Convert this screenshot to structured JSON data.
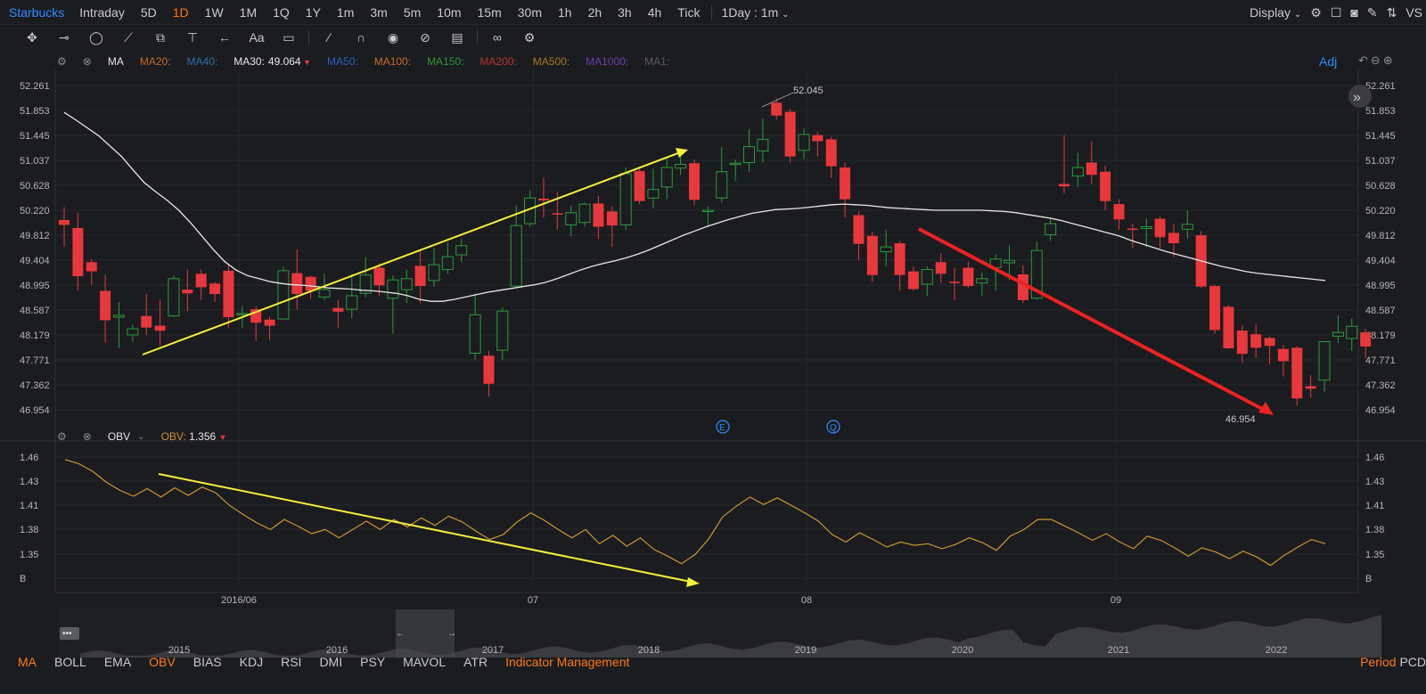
{
  "topbar": {
    "symbol": "Starbucks",
    "timeframes": [
      "Intraday",
      "5D",
      "1D",
      "1W",
      "1M",
      "1Q",
      "1Y",
      "1m",
      "3m",
      "5m",
      "10m",
      "15m",
      "30m",
      "1h",
      "2h",
      "3h",
      "4h",
      "Tick"
    ],
    "active_timeframe": "1D",
    "interval_label": "1Day : 1m",
    "display_label": "Display",
    "vs_label": "VS"
  },
  "toolbar": {
    "tools": [
      "move-icon",
      "line-tool-icon",
      "shape-tool-icon",
      "wave-tool-icon",
      "fib-tool-icon",
      "text-tool-icon",
      "arrow-tool-icon",
      "font-tool-icon",
      "note-tool-icon",
      "pencil-icon",
      "magnet-icon",
      "eye-icon",
      "hide-icon",
      "trash-icon",
      "link-icon",
      "settings-icon"
    ],
    "text_tool_label": "Aa"
  },
  "main_panel": {
    "indicator": "MA",
    "ma_items": [
      {
        "label": "MA20:",
        "color": "#c56a2a"
      },
      {
        "label": "MA40:",
        "color": "#2b6fae"
      },
      {
        "label": "MA30:",
        "value": "49.064",
        "color": "#e8e8e8"
      },
      {
        "label": "MA50:",
        "color": "#2b5fbe"
      },
      {
        "label": "MA100:",
        "color": "#c56a2a"
      },
      {
        "label": "MA150:",
        "color": "#2c9a3f"
      },
      {
        "label": "MA200:",
        "color": "#b8332e"
      },
      {
        "label": "MA500:",
        "color": "#a37a22"
      },
      {
        "label": "MA1000:",
        "color": "#6a3fb0"
      },
      {
        "label": "MA1:",
        "color": "#5a5c60"
      }
    ],
    "adj_label": "Adj",
    "high_label": "52.045",
    "low_label": "46.954",
    "event_markers": [
      "E",
      "Q"
    ]
  },
  "obv_panel": {
    "indicator": "OBV",
    "value_label": "OBV:",
    "value": "1.356",
    "line_color": "#c9972e"
  },
  "bottom_bar": {
    "indicators": [
      "MA",
      "BOLL",
      "EMA",
      "OBV",
      "BIAS",
      "KDJ",
      "RSI",
      "DMI",
      "PSY",
      "MAVOL",
      "ATR"
    ],
    "active": [
      "MA",
      "OBV"
    ],
    "management": "Indicator Management",
    "period": "Period",
    "pcd": "PCD"
  },
  "chart_data": [
    {
      "type": "candlestick",
      "y_ticks": [
        "52.261",
        "51.853",
        "51.445",
        "51.037",
        "50.628",
        "50.220",
        "49.812",
        "49.404",
        "48.995",
        "48.587",
        "48.179",
        "47.771",
        "47.362",
        "46.954"
      ],
      "ylim": [
        46.75,
        52.5
      ],
      "x_ticks": [
        "2016/06",
        "07",
        "08",
        "09"
      ],
      "up_color": "#2c9a3f",
      "down_color": "#e8383d",
      "candles": [
        [
          50.06,
          49.98,
          50.27,
          49.62
        ],
        [
          49.93,
          49.14,
          50.18,
          48.9
        ],
        [
          49.37,
          49.22,
          49.42,
          49.0
        ],
        [
          48.9,
          48.42,
          49.16,
          48.05
        ],
        [
          48.47,
          48.5,
          48.72,
          47.97
        ],
        [
          48.18,
          48.28,
          48.35,
          48.07
        ],
        [
          48.49,
          48.3,
          48.85,
          48.18
        ],
        [
          48.33,
          48.25,
          48.75,
          48.0
        ],
        [
          48.49,
          49.1,
          49.15,
          48.47
        ],
        [
          48.92,
          48.86,
          49.25,
          48.57
        ],
        [
          49.18,
          48.96,
          49.25,
          48.75
        ],
        [
          49.02,
          48.85,
          49.05,
          48.72
        ],
        [
          49.23,
          48.47,
          49.35,
          48.3
        ],
        [
          48.51,
          48.53,
          48.65,
          48.3
        ],
        [
          48.6,
          48.38,
          48.65,
          48.08
        ],
        [
          48.43,
          48.33,
          48.48,
          48.1
        ],
        [
          48.44,
          49.23,
          49.3,
          48.44
        ],
        [
          49.19,
          48.85,
          49.58,
          48.6
        ],
        [
          49.13,
          48.9,
          49.15,
          48.77
        ],
        [
          48.8,
          48.92,
          49.18,
          48.75
        ],
        [
          48.62,
          48.56,
          48.75,
          48.3
        ],
        [
          48.6,
          48.82,
          49.18,
          48.45
        ],
        [
          48.86,
          49.16,
          49.45,
          48.8
        ],
        [
          49.28,
          48.99,
          49.35,
          48.82
        ],
        [
          48.78,
          49.08,
          49.15,
          48.2
        ],
        [
          48.92,
          49.1,
          49.25,
          48.7
        ],
        [
          49.31,
          48.98,
          49.55,
          48.7
        ],
        [
          49.07,
          49.33,
          49.6,
          48.97
        ],
        [
          49.25,
          49.46,
          49.7,
          49.18
        ],
        [
          49.49,
          49.64,
          49.75,
          49.37
        ],
        [
          47.88,
          48.51,
          48.86,
          47.78
        ],
        [
          47.84,
          47.38,
          47.92,
          47.17
        ],
        [
          47.93,
          48.57,
          48.63,
          47.77
        ],
        [
          48.98,
          49.97,
          50.3,
          48.95
        ],
        [
          50.0,
          50.42,
          50.55,
          49.95
        ],
        [
          50.41,
          50.38,
          50.75,
          50.1
        ],
        [
          50.17,
          50.15,
          50.52,
          49.9
        ],
        [
          49.98,
          50.18,
          50.3,
          49.8
        ],
        [
          50.02,
          50.32,
          50.35,
          49.95
        ],
        [
          50.33,
          49.95,
          50.45,
          49.75
        ],
        [
          50.2,
          49.97,
          50.28,
          49.62
        ],
        [
          49.98,
          50.82,
          50.92,
          49.9
        ],
        [
          50.86,
          50.37,
          50.9,
          50.32
        ],
        [
          50.42,
          50.56,
          50.9,
          50.25
        ],
        [
          50.6,
          50.92,
          51.1,
          50.4
        ],
        [
          50.91,
          50.97,
          51.2,
          50.8
        ],
        [
          50.99,
          50.39,
          51.05,
          50.3
        ],
        [
          50.2,
          50.22,
          50.28,
          49.95
        ],
        [
          50.42,
          50.85,
          51.25,
          50.35
        ],
        [
          50.97,
          50.99,
          51.05,
          50.7
        ],
        [
          51.0,
          51.26,
          51.55,
          50.85
        ],
        [
          51.19,
          51.38,
          51.72,
          51.0
        ],
        [
          51.98,
          51.77,
          52.05,
          51.7
        ],
        [
          51.83,
          51.1,
          51.88,
          51.0
        ],
        [
          51.2,
          51.46,
          51.55,
          51.05
        ],
        [
          51.45,
          51.35,
          51.5,
          51.1
        ],
        [
          51.38,
          50.94,
          51.42,
          50.75
        ],
        [
          50.92,
          50.4,
          51.0,
          50.1
        ],
        [
          50.14,
          49.67,
          50.2,
          49.4
        ],
        [
          49.8,
          49.16,
          49.87,
          49.05
        ],
        [
          49.54,
          49.62,
          49.9,
          49.3
        ],
        [
          49.68,
          49.16,
          49.72,
          48.9
        ],
        [
          49.22,
          48.93,
          49.3,
          48.9
        ],
        [
          49.01,
          49.25,
          49.3,
          48.82
        ],
        [
          49.37,
          49.18,
          49.52,
          49.03
        ],
        [
          49.05,
          49.03,
          49.28,
          48.75
        ],
        [
          49.28,
          48.98,
          49.38,
          48.95
        ],
        [
          49.03,
          49.1,
          49.2,
          48.82
        ],
        [
          49.28,
          49.42,
          49.5,
          48.9
        ],
        [
          49.36,
          49.4,
          49.65,
          49.08
        ],
        [
          49.17,
          48.75,
          49.32,
          48.7
        ],
        [
          48.78,
          49.56,
          49.7,
          48.75
        ],
        [
          49.82,
          50.0,
          50.1,
          49.72
        ],
        [
          50.65,
          50.61,
          51.45,
          50.5
        ],
        [
          50.78,
          50.92,
          51.16,
          50.6
        ],
        [
          51.0,
          50.8,
          51.35,
          50.65
        ],
        [
          50.85,
          50.37,
          50.95,
          50.22
        ],
        [
          50.32,
          50.07,
          50.4,
          49.9
        ],
        [
          49.92,
          49.91,
          50.0,
          49.6
        ],
        [
          49.92,
          49.95,
          50.08,
          49.62
        ],
        [
          50.08,
          49.78,
          50.12,
          49.6
        ],
        [
          49.85,
          49.68,
          50.0,
          49.45
        ],
        [
          49.91,
          49.99,
          50.22,
          49.75
        ],
        [
          49.81,
          48.97,
          49.88,
          48.95
        ],
        [
          48.98,
          48.26,
          49.0,
          48.2
        ],
        [
          48.64,
          47.96,
          48.67,
          47.95
        ],
        [
          48.25,
          47.87,
          48.34,
          47.72
        ],
        [
          48.19,
          47.97,
          48.35,
          47.8
        ],
        [
          48.13,
          48.0,
          48.15,
          47.7
        ],
        [
          47.95,
          47.75,
          48.02,
          47.5
        ],
        [
          47.97,
          47.14,
          48.0,
          47.02
        ],
        [
          47.34,
          47.3,
          47.52,
          47.15
        ],
        [
          47.44,
          48.07,
          48.07,
          47.25
        ],
        [
          48.16,
          48.22,
          48.5,
          48.05
        ],
        [
          48.12,
          48.32,
          48.45,
          47.92
        ],
        [
          48.22,
          47.99,
          48.28,
          47.8
        ]
      ],
      "ma30": [
        51.82,
        51.7,
        51.57,
        51.44,
        51.27,
        51.1,
        50.88,
        50.67,
        50.52,
        50.38,
        50.22,
        50.02,
        49.8,
        49.58,
        49.38,
        49.24,
        49.15,
        49.1,
        49.05,
        49.02,
        49.0,
        48.99,
        48.97,
        48.95,
        48.94,
        48.93,
        48.91,
        48.9,
        48.88,
        48.86,
        48.82,
        48.76,
        48.73,
        48.73,
        48.76,
        48.8,
        48.84,
        48.88,
        48.91,
        48.94,
        48.97,
        49.0,
        49.04,
        49.1,
        49.17,
        49.24,
        49.3,
        49.35,
        49.39,
        49.44,
        49.5,
        49.57,
        49.65,
        49.73,
        49.81,
        49.88,
        49.95,
        50.01,
        50.07,
        50.12,
        50.17,
        50.2,
        50.23,
        50.24,
        50.25,
        50.27,
        50.29,
        50.31,
        50.32,
        50.31,
        50.3,
        50.28,
        50.26,
        50.25,
        50.24,
        50.23,
        50.22,
        50.22,
        50.22,
        50.22,
        50.22,
        50.21,
        50.2,
        50.18,
        50.15,
        50.12,
        50.09,
        50.05,
        50.0,
        49.95,
        49.9,
        49.85,
        49.8,
        49.73,
        49.67,
        49.61,
        49.55,
        49.5,
        49.45,
        49.4,
        49.35,
        49.3,
        49.26,
        49.22,
        49.19,
        49.17,
        49.15,
        49.13,
        49.11,
        49.09,
        49.07
      ]
    },
    {
      "type": "line",
      "series": [
        {
          "name": "OBV",
          "values": [
            1.457,
            1.452,
            1.443,
            1.43,
            1.42,
            1.413,
            1.422,
            1.412,
            1.423,
            1.414,
            1.424,
            1.417,
            1.402,
            1.391,
            1.381,
            1.373,
            1.385,
            1.377,
            1.368,
            1.373,
            1.363,
            1.373,
            1.383,
            1.373,
            1.385,
            1.376,
            1.387,
            1.378,
            1.389,
            1.382,
            1.371,
            1.361,
            1.367,
            1.382,
            1.393,
            1.384,
            1.373,
            1.363,
            1.373,
            1.356,
            1.366,
            1.353,
            1.363,
            1.349,
            1.341,
            1.332,
            1.343,
            1.362,
            1.388,
            1.401,
            1.412,
            1.403,
            1.411,
            1.402,
            1.393,
            1.383,
            1.367,
            1.358,
            1.369,
            1.361,
            1.352,
            1.358,
            1.354,
            1.356,
            1.35,
            1.355,
            1.363,
            1.357,
            1.348,
            1.365,
            1.373,
            1.385,
            1.385,
            1.377,
            1.369,
            1.36,
            1.368,
            1.358,
            1.35,
            1.365,
            1.36,
            1.351,
            1.341,
            1.351,
            1.346,
            1.338,
            1.347,
            1.34,
            1.33,
            1.342,
            1.352,
            1.361,
            1.356
          ]
        }
      ],
      "y_ticks": [
        "1.46",
        "1.43",
        "1.41",
        "1.38",
        "1.35",
        "B"
      ],
      "ylim": [
        1.323,
        1.463
      ]
    },
    {
      "type": "area",
      "x_ticks": [
        "2015",
        "2016",
        "2017",
        "2018",
        "2019",
        "2020",
        "2021",
        "2022"
      ]
    }
  ]
}
